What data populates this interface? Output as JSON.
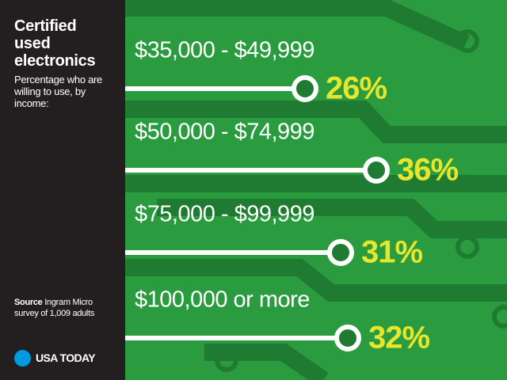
{
  "chart_data": {
    "type": "lollipop",
    "title": "Certified used electronics",
    "subtitle": "Percentage who are willing to use, by income:",
    "categories": [
      "$35,000 - $49,999",
      "$50,000 - $74,999",
      "$75,000 - $99,999",
      "$100,000 or more"
    ],
    "values": [
      26,
      36,
      31,
      32
    ],
    "value_labels": [
      "26%",
      "36%",
      "31%",
      "32%"
    ],
    "color": "#ffffff",
    "label_color": "#e6e62e",
    "source_label": "Source",
    "source": "Ingram Micro survey of 1,009 adults",
    "logo": "USA TODAY"
  }
}
